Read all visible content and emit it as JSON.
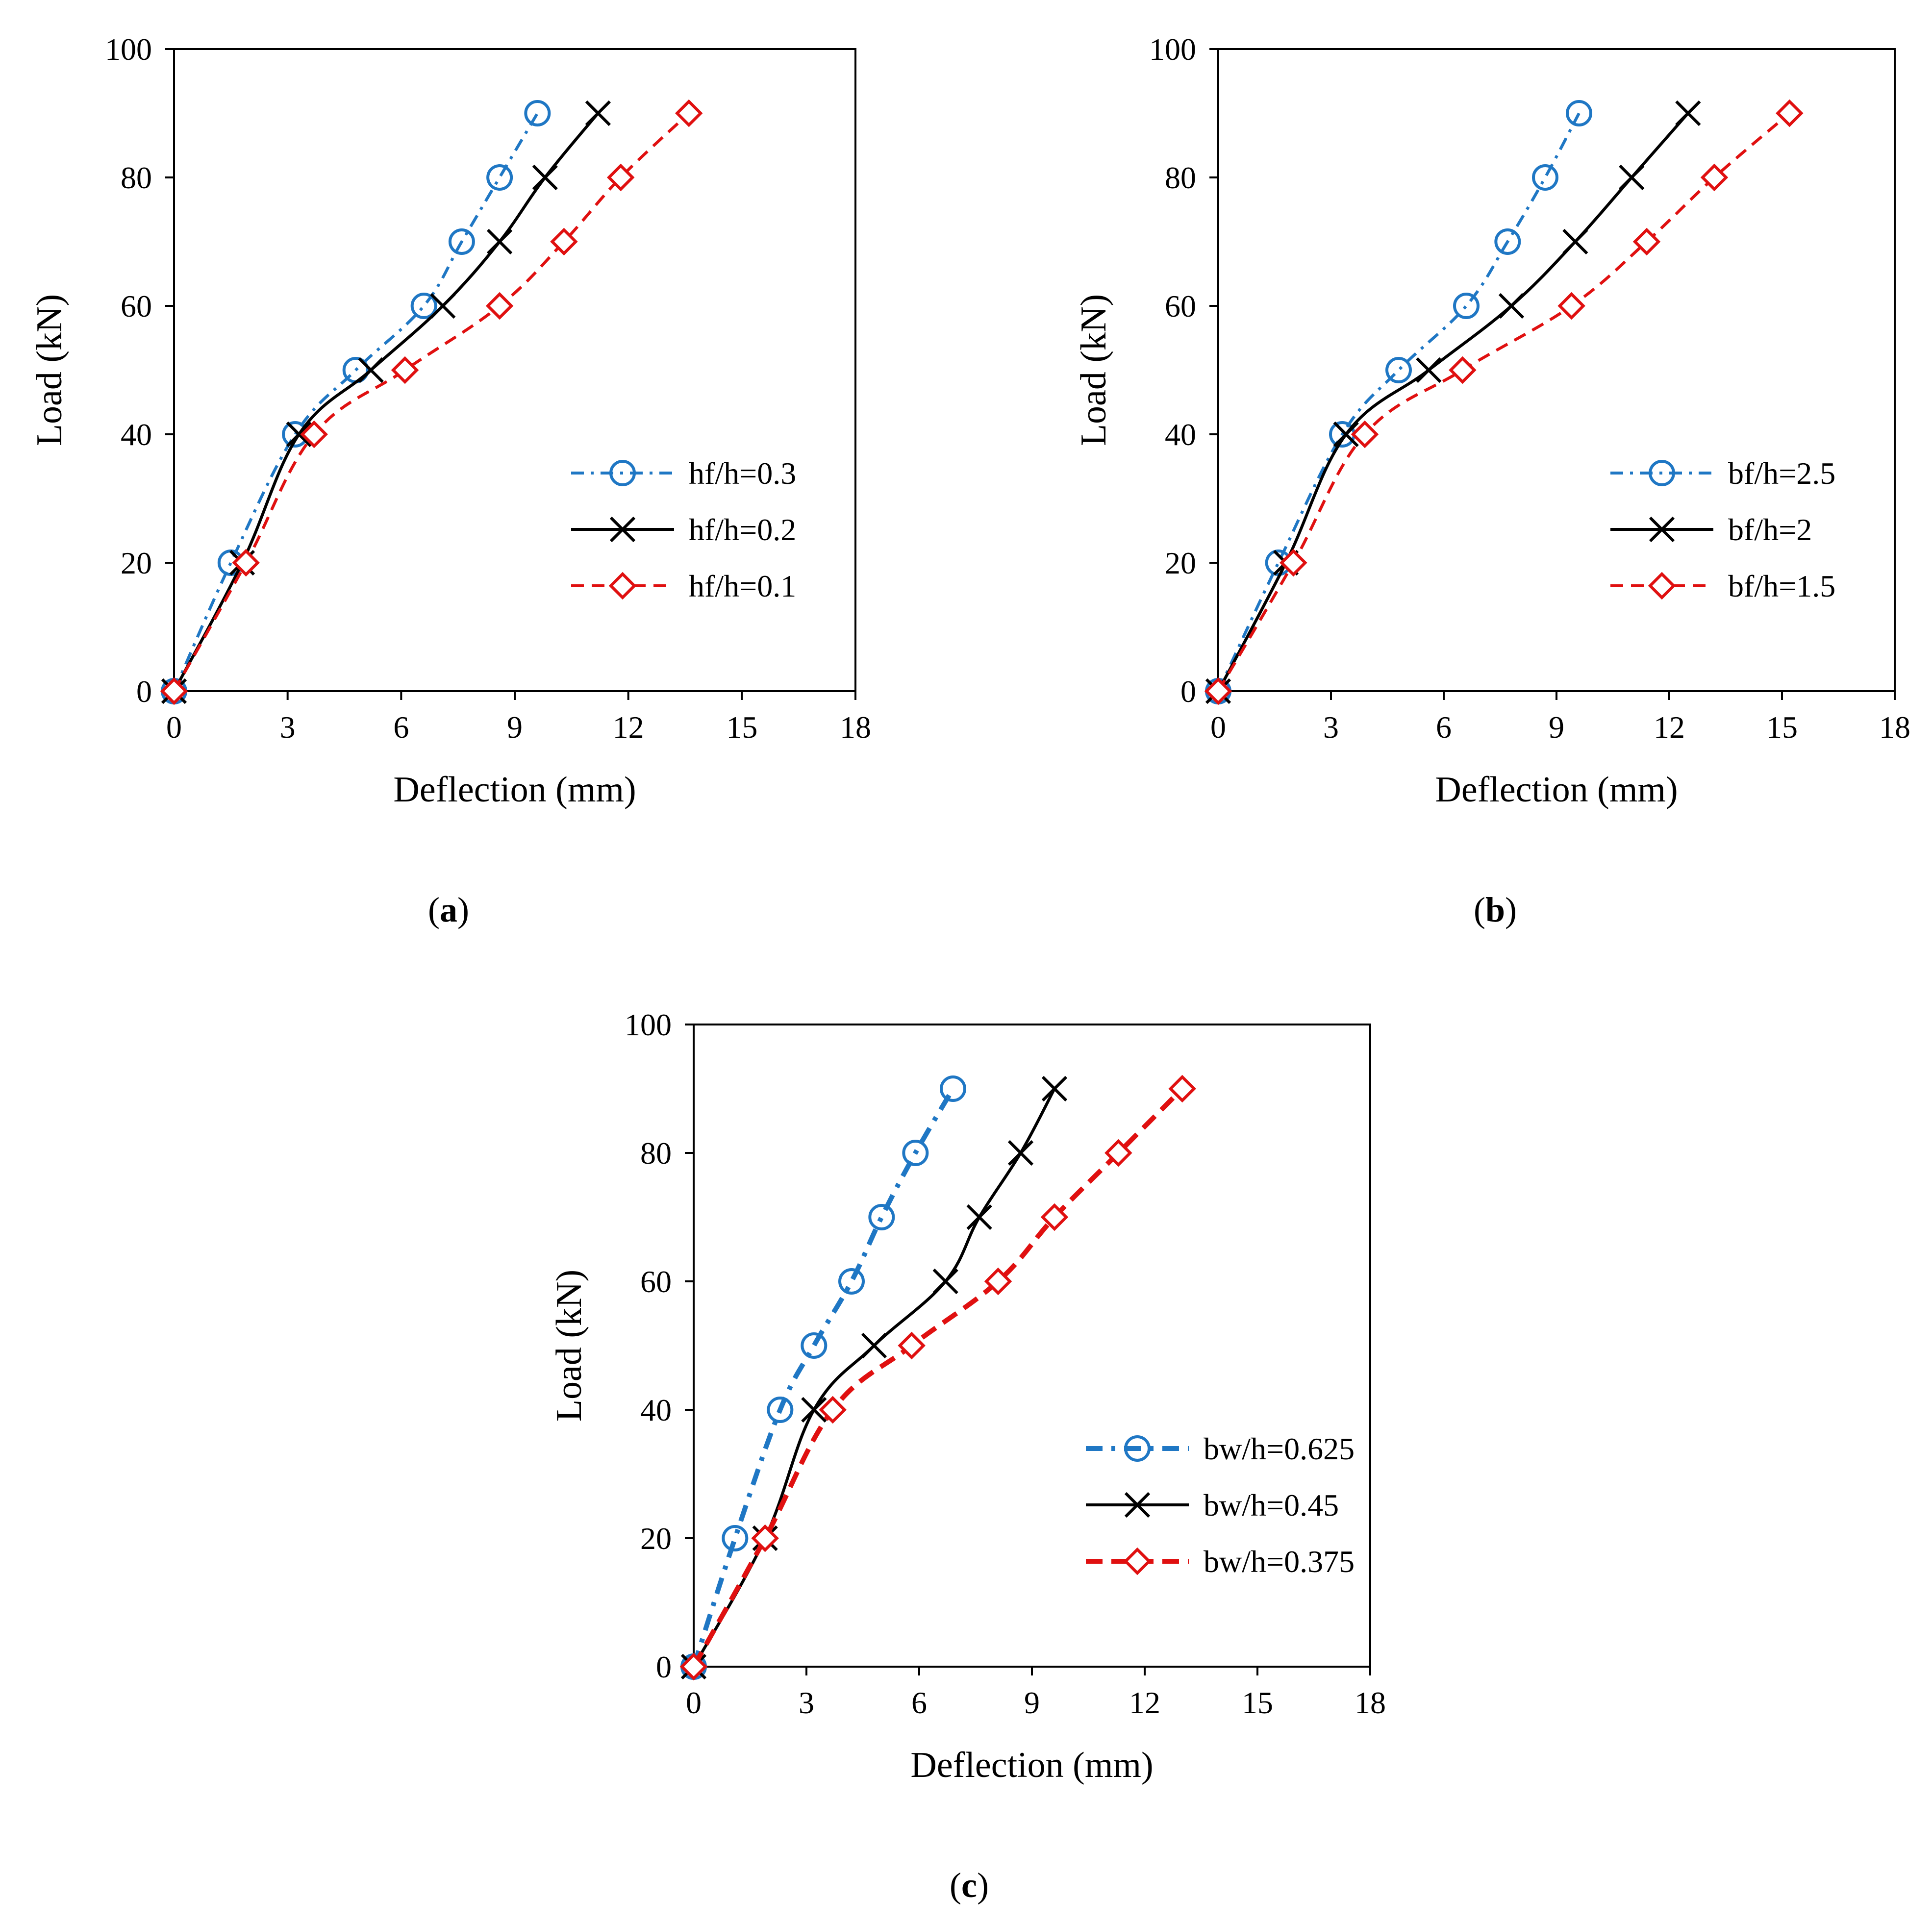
{
  "chart_data": [
    {
      "type": "line",
      "panel_label": "a",
      "xlabel": "Deflection (mm)",
      "ylabel": "Load (kN)",
      "xlim": [
        0,
        18
      ],
      "ylim": [
        0,
        100
      ],
      "xticks": [
        0,
        3,
        6,
        9,
        12,
        15,
        18
      ],
      "yticks": [
        0,
        20,
        40,
        60,
        80,
        100
      ],
      "grid": false,
      "legend_position": "lower-right",
      "series": [
        {
          "name": "hf/h=0.3",
          "color": "#1f77c4",
          "dash": "dash-dot",
          "marker": "circle",
          "x": [
            0,
            1.5,
            3.2,
            4.8,
            6.6,
            7.6,
            8.6,
            9.6
          ],
          "y": [
            0,
            20,
            40,
            50,
            60,
            70,
            80,
            90
          ]
        },
        {
          "name": "hf/h=0.2",
          "color": "#000000",
          "dash": "solid",
          "marker": "x",
          "x": [
            0,
            1.8,
            3.3,
            5.2,
            7.1,
            8.6,
            9.8,
            11.2
          ],
          "y": [
            0,
            20,
            40,
            50,
            60,
            70,
            80,
            90
          ]
        },
        {
          "name": "hf/h=0.1",
          "color": "#e01010",
          "dash": "dash",
          "marker": "diamond",
          "x": [
            0,
            1.9,
            3.7,
            6.1,
            8.6,
            10.3,
            11.8,
            13.6
          ],
          "y": [
            0,
            20,
            40,
            50,
            60,
            70,
            80,
            90
          ]
        }
      ]
    },
    {
      "type": "line",
      "panel_label": "b",
      "xlabel": "Deflection (mm)",
      "ylabel": "Load (kN)",
      "xlim": [
        0,
        18
      ],
      "ylim": [
        0,
        100
      ],
      "xticks": [
        0,
        3,
        6,
        9,
        12,
        15,
        18
      ],
      "yticks": [
        0,
        20,
        40,
        60,
        80,
        100
      ],
      "grid": false,
      "legend_position": "lower-right",
      "series": [
        {
          "name": "bf/h=2.5",
          "color": "#1f77c4",
          "dash": "dash-dot",
          "marker": "circle",
          "x": [
            0,
            1.6,
            3.3,
            4.8,
            6.6,
            7.7,
            8.7,
            9.6
          ],
          "y": [
            0,
            20,
            40,
            50,
            60,
            70,
            80,
            90
          ]
        },
        {
          "name": "bf/h=2",
          "color": "#000000",
          "dash": "solid",
          "marker": "x",
          "x": [
            0,
            1.8,
            3.4,
            5.6,
            7.8,
            9.5,
            11.0,
            12.5
          ],
          "y": [
            0,
            20,
            40,
            50,
            60,
            70,
            80,
            90
          ]
        },
        {
          "name": "bf/h=1.5",
          "color": "#e01010",
          "dash": "dash",
          "marker": "diamond",
          "x": [
            0,
            2.0,
            3.9,
            6.5,
            9.4,
            11.4,
            13.2,
            15.2
          ],
          "y": [
            0,
            20,
            40,
            50,
            60,
            70,
            80,
            90
          ]
        }
      ]
    },
    {
      "type": "line",
      "panel_label": "c",
      "xlabel": "Deflection (mm)",
      "ylabel": "Load (kN)",
      "xlim": [
        0,
        18
      ],
      "ylim": [
        0,
        100
      ],
      "xticks": [
        0,
        3,
        6,
        9,
        12,
        15,
        18
      ],
      "yticks": [
        0,
        20,
        40,
        60,
        80,
        100
      ],
      "grid": false,
      "legend_position": "lower-right",
      "series": [
        {
          "name": "bw/h=0.625",
          "color": "#1f77c4",
          "dash": "bold-dash-dot",
          "marker": "circle",
          "x": [
            0,
            1.1,
            2.3,
            3.2,
            4.2,
            5.0,
            5.9,
            6.9
          ],
          "y": [
            0,
            20,
            40,
            50,
            60,
            70,
            80,
            90
          ]
        },
        {
          "name": "bw/h=0.45",
          "color": "#000000",
          "dash": "solid",
          "marker": "x",
          "x": [
            0,
            1.9,
            3.2,
            4.8,
            6.7,
            7.6,
            8.7,
            9.6
          ],
          "y": [
            0,
            20,
            40,
            50,
            60,
            70,
            80,
            90
          ]
        },
        {
          "name": "bw/h=0.375",
          "color": "#e01010",
          "dash": "bold-dash",
          "marker": "diamond",
          "x": [
            0,
            1.9,
            3.7,
            5.8,
            8.1,
            9.6,
            11.3,
            13.0
          ],
          "y": [
            0,
            20,
            40,
            50,
            60,
            70,
            80,
            90
          ]
        }
      ]
    }
  ]
}
